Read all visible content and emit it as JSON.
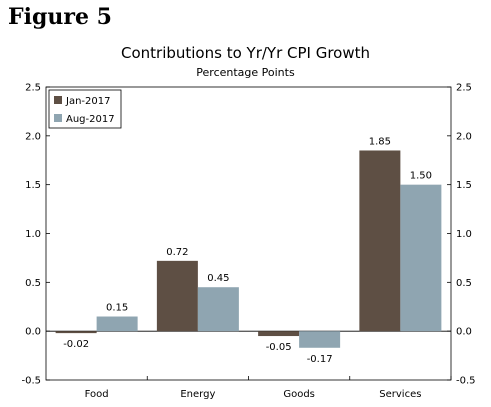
{
  "figure_label": "Figure 5",
  "chart_data": {
    "type": "bar",
    "title": "Contributions to Yr/Yr CPI Growth",
    "subtitle": "Percentage Points",
    "xlabel": "",
    "ylabel": "",
    "categories": [
      "Food",
      "Energy",
      "Goods",
      "Services"
    ],
    "series": [
      {
        "name": "Jan-2017",
        "values": [
          -0.02,
          0.72,
          -0.05,
          1.85
        ],
        "labels": [
          "-0.02",
          "0.72",
          "-0.05",
          "1.85"
        ],
        "color": "#5e4f44"
      },
      {
        "name": "Aug-2017",
        "values": [
          0.15,
          0.45,
          -0.17,
          1.5
        ],
        "labels": [
          "0.15",
          "0.45",
          "-0.17",
          "1.50"
        ],
        "color": "#8fa5b1"
      }
    ],
    "ylim": [
      -0.5,
      2.5
    ],
    "yticks": [
      "-0.5",
      "0.0",
      "0.5",
      "1.0",
      "1.5",
      "2.0",
      "2.5"
    ],
    "y_axis_both_sides": true,
    "grid": false,
    "legend": "top-left"
  }
}
